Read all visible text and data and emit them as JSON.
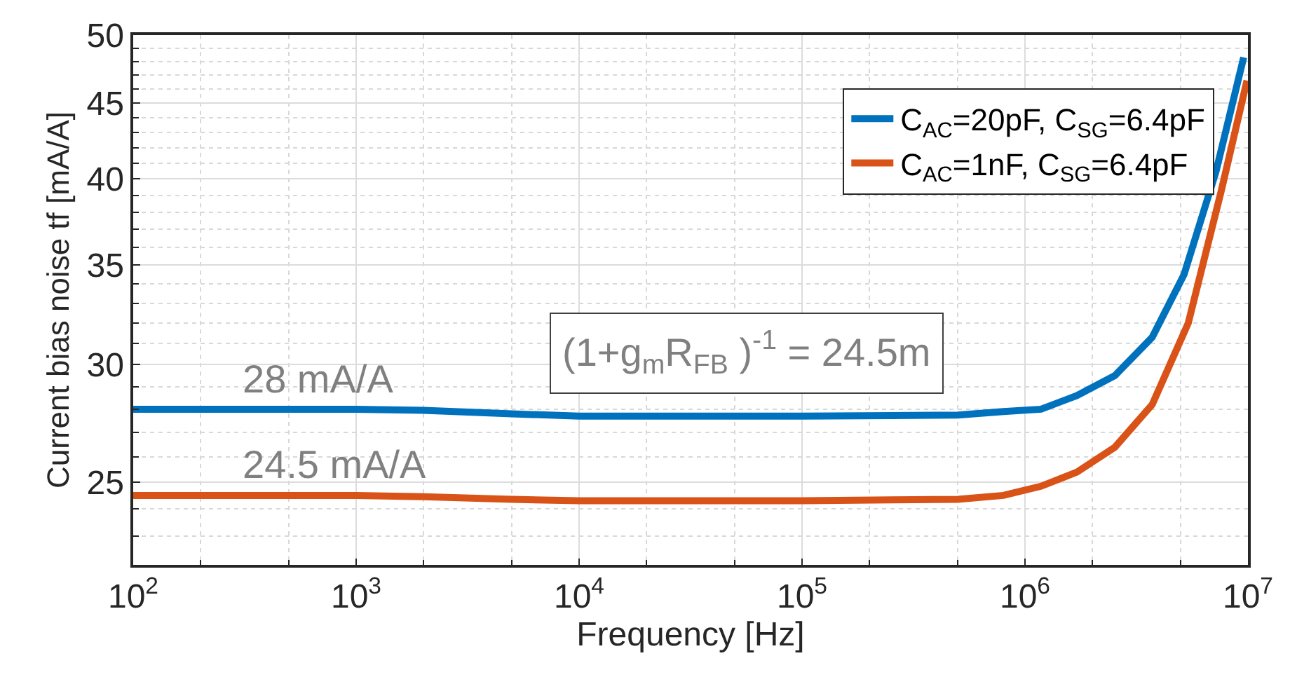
{
  "chart_data": {
    "type": "line",
    "xlabel": "Frequency [Hz]",
    "ylabel": "Current bias noise tf [mA/A]",
    "log": "xy",
    "grid": true,
    "legend": "top right",
    "marker": "none",
    "line_style": "solid",
    "xlim": [
      100,
      10000000
    ],
    "xticks": [
      {
        "value": 100,
        "label": "10$^{2}$"
      },
      {
        "value": 1000,
        "label": "10$^{3}$"
      },
      {
        "value": 10000,
        "label": "10$^{4}$"
      },
      {
        "value": 100000,
        "label": "10$^{5}$"
      },
      {
        "value": 1000000,
        "label": "10$^{6}$"
      },
      {
        "value": 10000000,
        "label": "10$^{7}$"
      }
    ],
    "ylim": [
      22,
      50
    ],
    "yticks": [
      25,
      30,
      35,
      40,
      45,
      50
    ],
    "series": [
      {
        "name": "C$_{AC}$=20pF, C$_{SG}$=6.4pF",
        "color": "#0072bd",
        "x": [
          100,
          300,
          1000,
          2000,
          5000,
          10000,
          100000,
          500000,
          800000,
          1180000,
          1710000,
          2530000,
          3720000,
          5170000,
          7200000,
          9570000
        ],
        "values": [
          28.0,
          28.0,
          28.0,
          27.95,
          27.8,
          27.7,
          27.7,
          27.75,
          27.9,
          28.0,
          28.6,
          29.5,
          31.3,
          34.5,
          40.5,
          48.3
        ]
      },
      {
        "name": "C$_{AC}$=1nF, C$_{SG}$=6.4pF",
        "color": "#d95319",
        "x": [
          100,
          300,
          1000,
          2000,
          5000,
          10000,
          100000,
          500000,
          800000,
          1180000,
          1710000,
          2530000,
          3720000,
          5400000,
          7600000,
          9900000
        ],
        "values": [
          24.5,
          24.5,
          24.5,
          24.45,
          24.35,
          24.3,
          24.3,
          24.35,
          24.5,
          24.85,
          25.4,
          26.4,
          28.2,
          32.0,
          39.3,
          46.6
        ]
      }
    ],
    "annotations": [
      {
        "text": "28 mA/A",
        "x": 300,
        "y": 28
      },
      {
        "text": "24.5 mA/A",
        "x": 300,
        "y": 24.5
      },
      "(1+g$_{m}$R$_{FB}$ )$^{-1}$ = 24.5m"
    ]
  }
}
